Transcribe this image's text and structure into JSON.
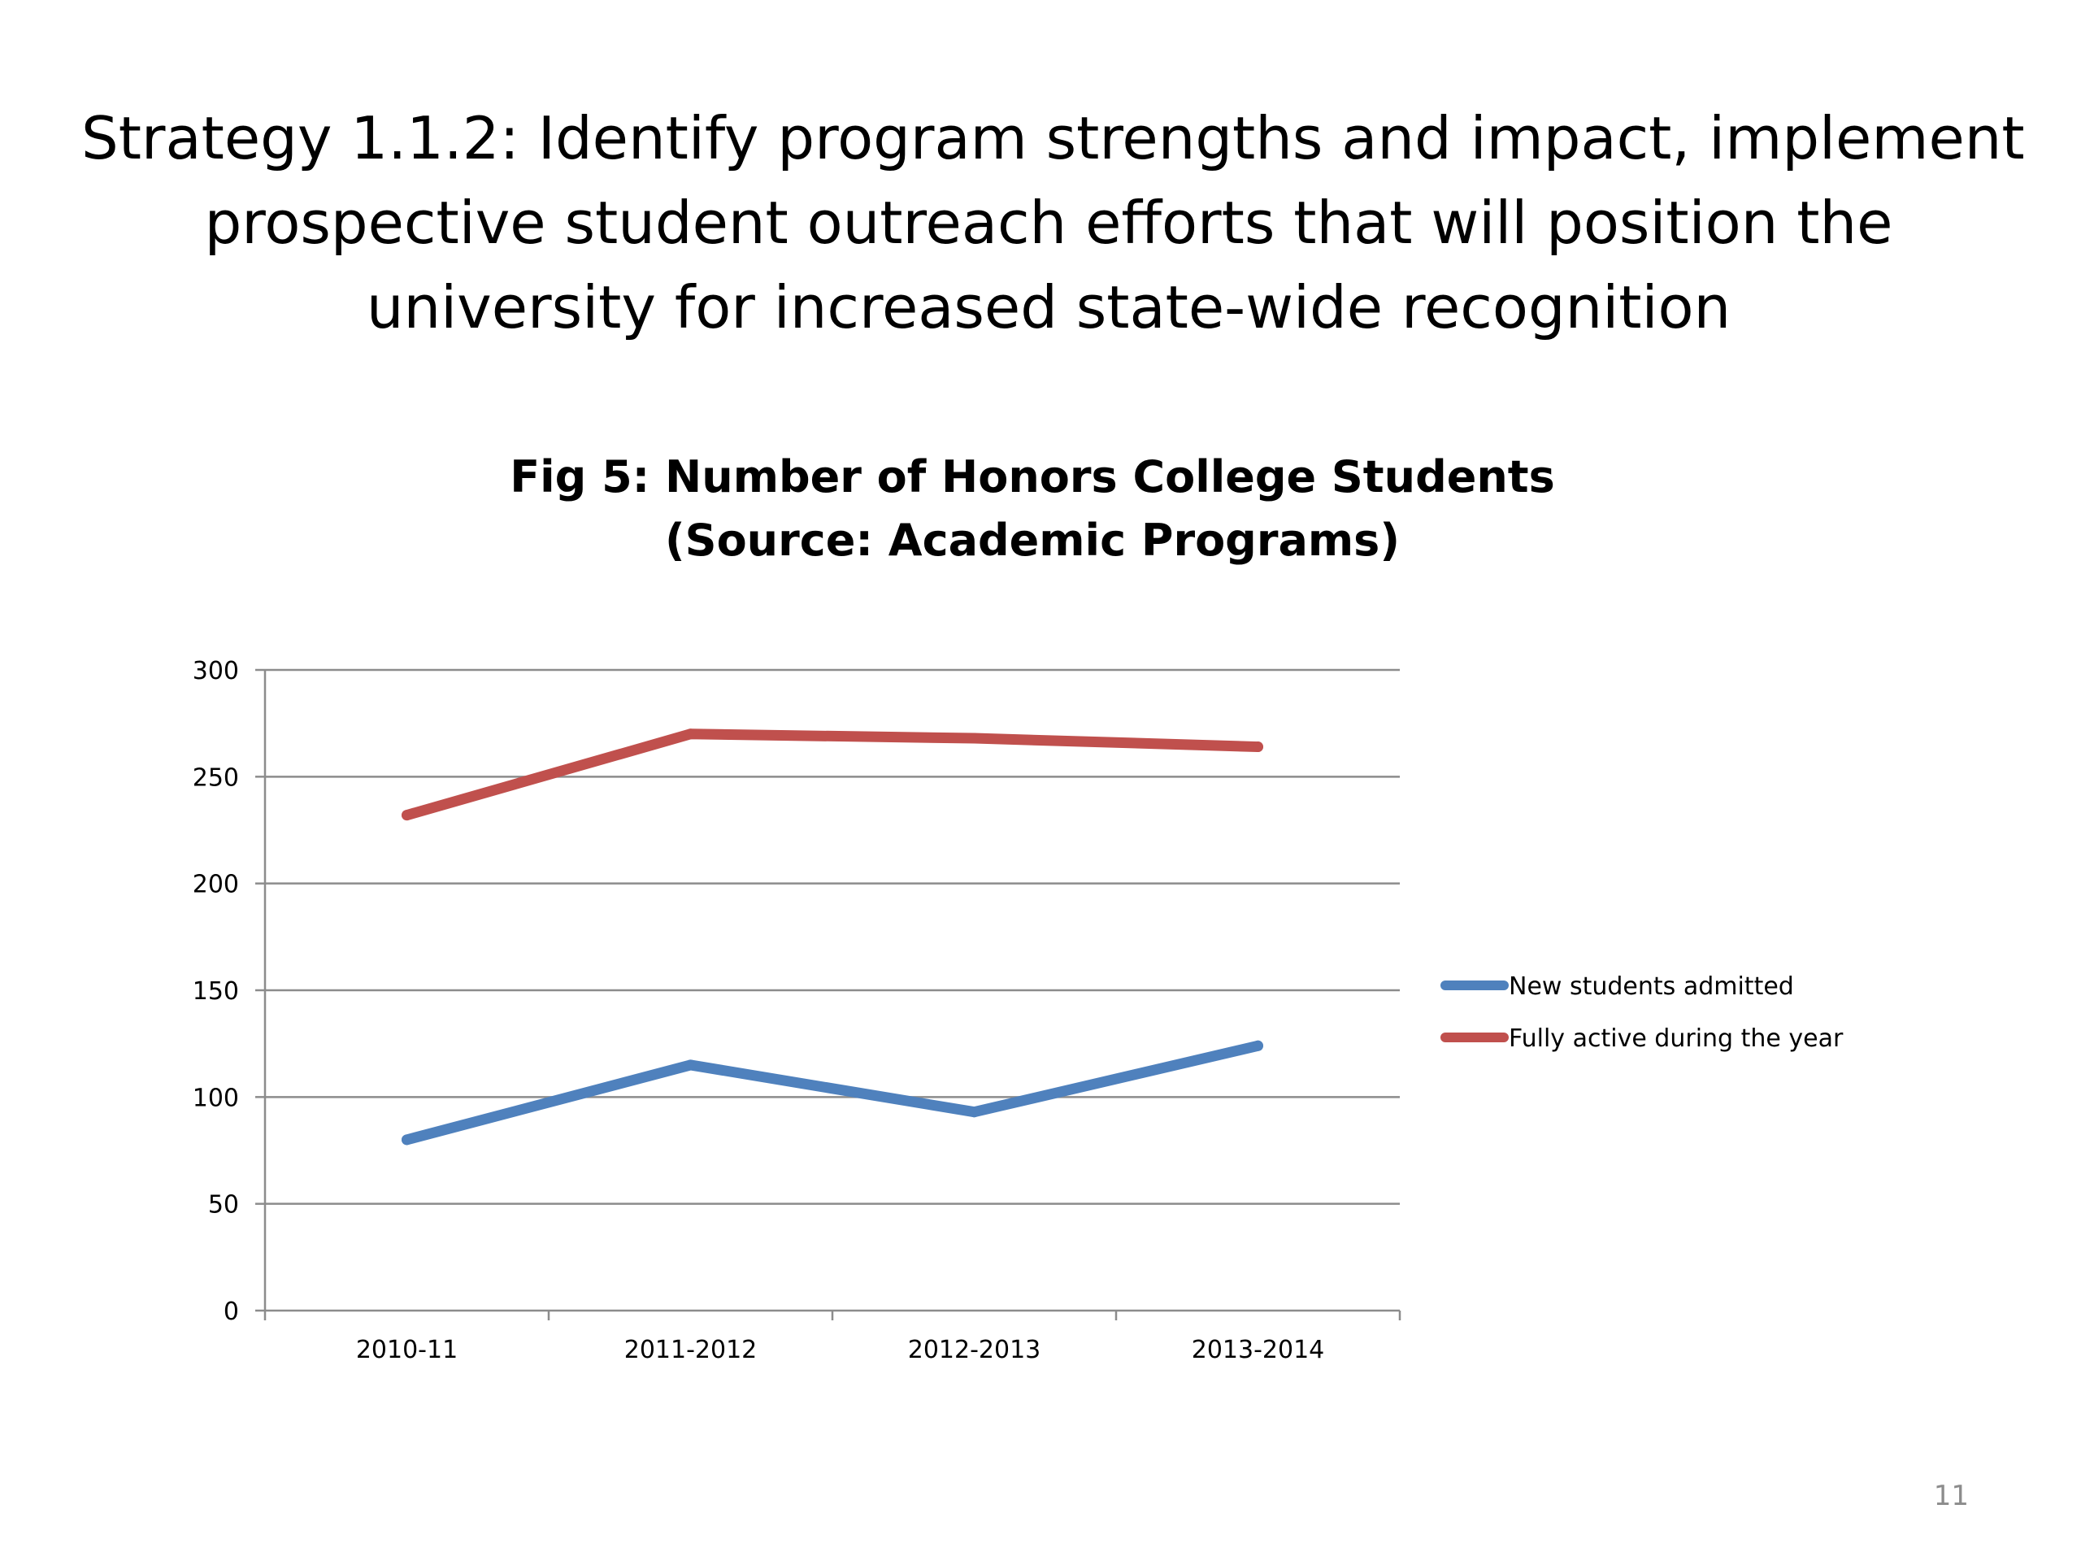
{
  "slide": {
    "title_lines": [
      "Strategy 1.1.2: Identify program strengths and impact, implement",
      "prospective student outreach efforts that will position the",
      "university for increased state-wide recognition"
    ],
    "page_number": "11"
  },
  "chart_data": {
    "type": "line",
    "title_lines": [
      "Fig 5: Number of Honors College Students",
      "(Source: Academic Programs)"
    ],
    "categories": [
      "2010-11",
      "2011-2012",
      "2012-2013",
      "2013-2014"
    ],
    "series": [
      {
        "name": "New students admitted",
        "values": [
          80,
          115,
          93,
          124
        ],
        "color": "#4f81bd"
      },
      {
        "name": "Fully active during the year",
        "values": [
          232,
          270,
          268,
          264
        ],
        "color": "#c0504d"
      }
    ],
    "ylim": [
      0,
      300
    ],
    "yticks": [
      0,
      50,
      100,
      150,
      200,
      250,
      300
    ],
    "grid": true,
    "legend_position": "right",
    "xlabel": "",
    "ylabel": ""
  }
}
